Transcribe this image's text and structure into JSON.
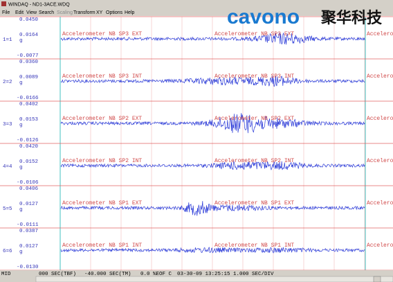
{
  "window": {
    "title": "WINDAQ - ND1-3ACE.WDQ",
    "menu": [
      "File",
      "Edit",
      "View",
      "Search",
      "Scaling",
      "Transform",
      "XY",
      "Options",
      "Help"
    ],
    "logo": {
      "brand": "cavono",
      "chinese": "聚华科技"
    }
  },
  "channels": [
    {
      "id": "1=1",
      "top": "0.0450",
      "mid": "0.0164",
      "unit": "g",
      "bottom": "-0.0077",
      "annotation": "Accelerometer  NB SP3 EXT"
    },
    {
      "id": "2=2",
      "top": "0.0360",
      "mid": "0.0089",
      "unit": "g",
      "bottom": "-0.0166",
      "annotation": "Accelerometer  NB SP3 INT"
    },
    {
      "id": "3=3",
      "top": "0.0402",
      "mid": "0.0153",
      "unit": "g",
      "bottom": "-0.0126",
      "annotation": "Accelerometer  NB SP2 EXT"
    },
    {
      "id": "4=4",
      "top": "0.0420",
      "mid": "0.0152",
      "unit": "g",
      "bottom": "-0.0106",
      "annotation": "Accelerometer  NB SP2 INT"
    },
    {
      "id": "5=5",
      "top": "0.0406",
      "mid": "0.0127",
      "unit": "g",
      "bottom": "-0.0111",
      "annotation": "Accelerometer  NB SP1 EXT"
    },
    {
      "id": "6=6",
      "top": "0.0387",
      "mid": "0.0127",
      "unit": "g",
      "bottom": "-0.0130",
      "annotation": "Accelerometer  NB SP1 INT"
    }
  ],
  "status": [
    "MID",
    "000 SEC(TBF)",
    "-40.000 SEC(TM)",
    "0.0 %EOF C",
    "03-30-09 13:25:15 1.000 SEC/DIV"
  ]
}
